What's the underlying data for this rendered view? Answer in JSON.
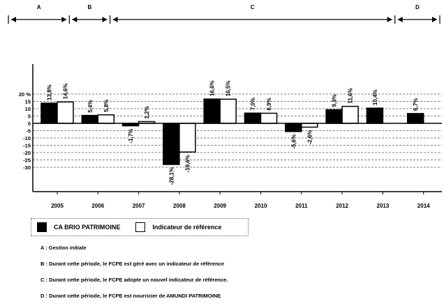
{
  "chart_data": {
    "type": "bar",
    "categories": [
      "2005",
      "2006",
      "2007",
      "2008",
      "2009",
      "2010",
      "2011",
      "2012",
      "2013",
      "2014"
    ],
    "series": [
      {
        "name": "CA BRIO PATRIMOINE",
        "color": "#000000",
        "values": [
          13.8,
          5.4,
          -1.7,
          -28.1,
          16.6,
          7.0,
          -5.6,
          9.3,
          10.4,
          6.7
        ],
        "labels": [
          "13,8%",
          "5,4%",
          "-1,7%",
          "-28,1%",
          "16,6%",
          "7,0%",
          "-5,6%",
          "9,3%",
          "10,4%",
          "6,7%"
        ]
      },
      {
        "name": "Indicateur de référence",
        "color": "#ffffff",
        "values": [
          14.6,
          5.8,
          1.2,
          -19.6,
          16.5,
          6.9,
          -2.6,
          11.6,
          null,
          null
        ],
        "labels": [
          "14,6%",
          "5,8%",
          "1,2%",
          "-19,6%",
          "16,5%",
          "6,9%",
          "-2,6%",
          "11,6%",
          "",
          ""
        ]
      }
    ],
    "y_ticks": [
      20,
      15,
      10,
      5,
      0,
      -5,
      -10,
      -15,
      -20,
      -25,
      -30
    ],
    "y_tick_labels": [
      "20 %",
      "15",
      "10",
      "5",
      "0",
      "-5",
      "-10",
      "-15",
      "-20",
      "-25",
      "-30"
    ],
    "ylim": [
      -30,
      20
    ],
    "grid": true,
    "legend_position": "bottom-left",
    "periods": [
      {
        "label": "A",
        "from": 0,
        "to": 1
      },
      {
        "label": "B",
        "from": 1,
        "to": 2
      },
      {
        "label": "C",
        "from": 2,
        "to": 9
      },
      {
        "label": "D",
        "from": 9,
        "to": 10
      }
    ]
  },
  "legend": {
    "series_a": "CA BRIO PATRIMOINE",
    "series_b": "Indicateur de référence"
  },
  "notes": [
    "A : Gestion initiale",
    "B : Durant cette période, le FCPE est géré avec un indicateur de référence",
    "C : Durant cette période, le FCPE adopte un nouvel indicateur de référence.",
    "D : Durant cette période, le FCPE est nourricier de AMUNDI PATRIMOINE"
  ]
}
